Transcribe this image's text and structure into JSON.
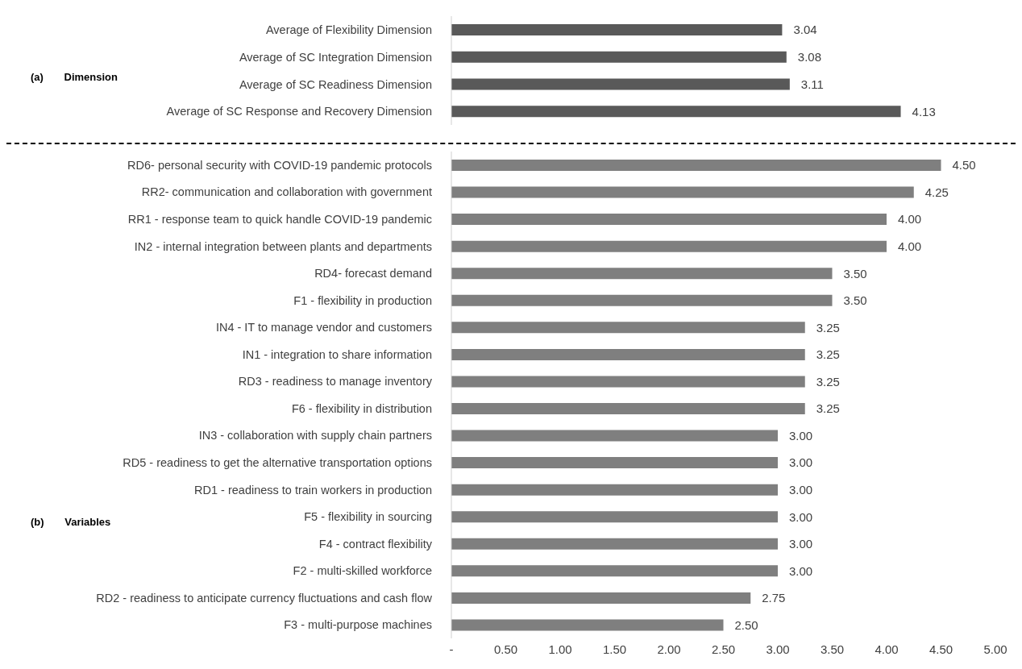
{
  "chart_data": [
    {
      "type": "bar",
      "orientation": "horizontal",
      "title": "(a) Dimension",
      "categories": [
        "Average of Flexibility Dimension",
        "Average of  SC Integration Dimension",
        "Average of  SC Readiness Dimension",
        "Average of  SC Response and Recovery Dimension"
      ],
      "values": [
        3.04,
        3.08,
        3.11,
        4.13
      ],
      "value_labels": [
        "3.04",
        "3.08",
        "3.11",
        "4.13"
      ],
      "color": "#595959",
      "xlim": [
        0,
        5
      ],
      "tick_labels": "y"
    },
    {
      "type": "bar",
      "orientation": "horizontal",
      "title": "(b) Variables",
      "categories": [
        "RD6- personal security with COVID-19 pandemic protocols",
        "RR2- communication and collaboration with government",
        "RR1 - response team to quick handle COVID-19 pandemic",
        "IN2 - internal integration between plants and departments",
        "RD4- forecast demand",
        "F1   - flexibility in production",
        "IN4 - IT to manage vendor and customers",
        "IN1 - integration to share information",
        "RD3 - readiness to manage inventory",
        "F6  - flexibility in distribution",
        "IN3 - collaboration with supply chain partners",
        "RD5 - readiness to get the alternative transportation options",
        "RD1 - readiness to train workers in production",
        "F5  - flexibility in sourcing",
        "F4   - contract flexibility",
        "F2  - multi-skilled workforce",
        "RD2 - readiness to anticipate currency fluctuations and cash flow",
        "F3   - multi-purpose machines"
      ],
      "values": [
        4.5,
        4.25,
        4.0,
        4.0,
        3.5,
        3.5,
        3.25,
        3.25,
        3.25,
        3.25,
        3.0,
        3.0,
        3.0,
        3.0,
        3.0,
        3.0,
        2.75,
        2.5
      ],
      "value_labels": [
        "4.50",
        "4.25",
        "4.00",
        "4.00",
        "3.50",
        "3.50",
        "3.25",
        "3.25",
        "3.25",
        "3.25",
        "3.00",
        "3.00",
        "3.00",
        "3.00",
        "3.00",
        "3.00",
        "2.75",
        "2.50"
      ],
      "color": "#7f7f7f",
      "xlim": [
        0,
        5
      ],
      "xticks": [
        {
          "value": 0,
          "label": "-"
        },
        {
          "value": 0.5,
          "label": "0.50"
        },
        {
          "value": 1,
          "label": "1.00"
        },
        {
          "value": 1.5,
          "label": "1.50"
        },
        {
          "value": 2,
          "label": "2.00"
        },
        {
          "value": 2.5,
          "label": "2.50"
        },
        {
          "value": 3,
          "label": "3.00"
        },
        {
          "value": 3.5,
          "label": "3.50"
        },
        {
          "value": 4,
          "label": "4.00"
        },
        {
          "value": 4.5,
          "label": "4.50"
        },
        {
          "value": 5,
          "label": "5.00"
        }
      ]
    }
  ]
}
